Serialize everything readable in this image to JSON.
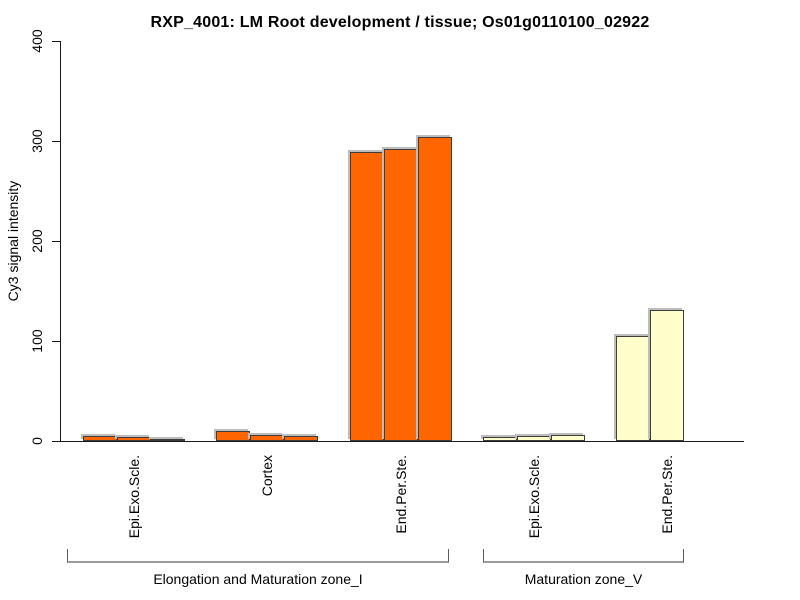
{
  "chart_data": {
    "type": "bar",
    "title": "RXP_4001: LM Root development / tissue; Os01g0110100_02922",
    "xlabel": "",
    "ylabel": "Cy3 signal intensity",
    "ylim": [
      0,
      400
    ],
    "yticks": [
      0,
      100,
      200,
      300,
      400
    ],
    "grid": false,
    "legend": null,
    "colors": {
      "zone_I_fill": "#FF6600",
      "zone_V_fill": "#FFFFCC",
      "bar_border": "#3d3d3d",
      "bar_shadow": "#bdbdbd",
      "axis": "#1a1a1a",
      "bracket": "#9a9a9a"
    },
    "groups": [
      {
        "label": "Epi.Exo.Scle.",
        "zone": "Elongation and Maturation zone_I",
        "fill": "#FF6600",
        "values": [
          5,
          4,
          2
        ]
      },
      {
        "label": "Cortex",
        "zone": "Elongation and Maturation zone_I",
        "fill": "#FF6600",
        "values": [
          10,
          6,
          5
        ]
      },
      {
        "label": "End.Per.Ste.",
        "zone": "Elongation and Maturation zone_I",
        "fill": "#FF6600",
        "values": [
          289,
          292,
          304
        ]
      },
      {
        "label": "Epi.Exo.Scle.",
        "zone": "Maturation zone_V",
        "fill": "#FFFFCC",
        "values": [
          4,
          5,
          6
        ]
      },
      {
        "label": "End.Per.Ste.",
        "zone": "Maturation zone_V",
        "fill": "#FFFFCC",
        "values": [
          105,
          131
        ]
      }
    ],
    "zones": [
      {
        "label": "Elongation and Maturation zone_I",
        "group_indices": [
          0,
          1,
          2
        ]
      },
      {
        "label": "Maturation zone_V",
        "group_indices": [
          3,
          4
        ]
      }
    ]
  }
}
